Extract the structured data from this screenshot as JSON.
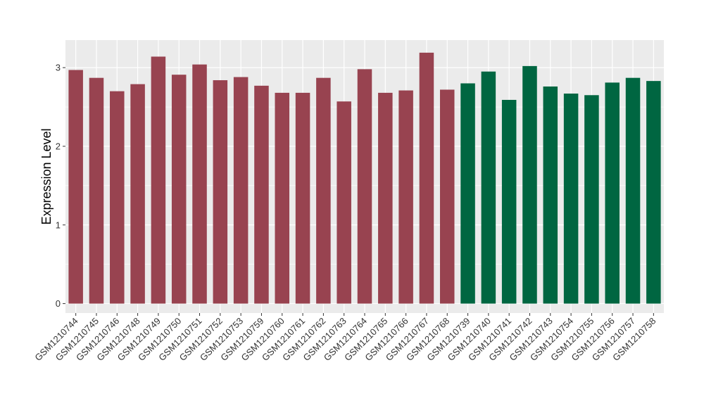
{
  "chart_data": {
    "type": "bar",
    "title": "",
    "xlabel": "",
    "ylabel": "Expression Level",
    "ylim": [
      -0.12,
      3.35
    ],
    "yticks": [
      0,
      1,
      2,
      3
    ],
    "grid": true,
    "categories": [
      "GSM1210744",
      "GSM1210745",
      "GSM1210746",
      "GSM1210748",
      "GSM1210749",
      "GSM1210750",
      "GSM1210751",
      "GSM1210752",
      "GSM1210753",
      "GSM1210759",
      "GSM1210760",
      "GSM1210761",
      "GSM1210762",
      "GSM1210763",
      "GSM1210764",
      "GSM1210765",
      "GSM1210766",
      "GSM1210767",
      "GSM1210768",
      "GSM1210739",
      "GSM1210740",
      "GSM1210741",
      "GSM1210742",
      "GSM1210743",
      "GSM1210754",
      "GSM1210755",
      "GSM1210756",
      "GSM1210757",
      "GSM1210758"
    ],
    "values": [
      2.97,
      2.87,
      2.7,
      2.79,
      3.14,
      2.91,
      3.04,
      2.84,
      2.88,
      2.77,
      2.68,
      2.68,
      2.87,
      2.57,
      2.98,
      2.68,
      2.71,
      3.19,
      2.72,
      2.8,
      2.95,
      2.59,
      3.02,
      2.76,
      2.67,
      2.65,
      2.81,
      2.87,
      2.83
    ],
    "bar_colors": [
      "#984350",
      "#984350",
      "#984350",
      "#984350",
      "#984350",
      "#984350",
      "#984350",
      "#984350",
      "#984350",
      "#984350",
      "#984350",
      "#984350",
      "#984350",
      "#984350",
      "#984350",
      "#984350",
      "#984350",
      "#984350",
      "#984350",
      "#006641",
      "#006641",
      "#006641",
      "#006641",
      "#006641",
      "#006641",
      "#006641",
      "#006641",
      "#006641",
      "#006641"
    ],
    "panel_background": "#ebebeb",
    "gridline_color": "#ffffff"
  }
}
